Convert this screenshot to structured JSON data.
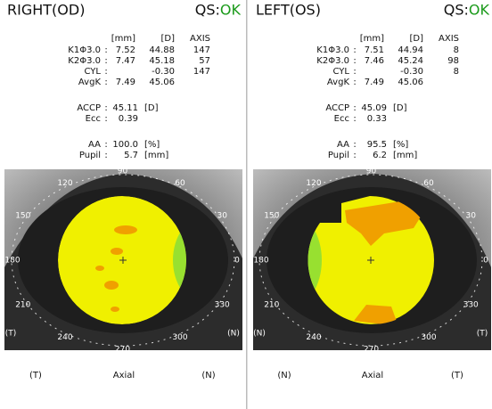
{
  "panels": [
    {
      "title": "RIGHT(OD)",
      "qs_label": "QS:",
      "qs_status": "OK",
      "columns": [
        "[mm]",
        "[D]",
        "AXIS"
      ],
      "rows": [
        {
          "label": "K1Φ3.0",
          "sep": ":",
          "mm": "7.52",
          "d": "44.88",
          "axis": "147"
        },
        {
          "label": "K2Φ3.0",
          "sep": ":",
          "mm": "7.47",
          "d": "45.18",
          "axis": "57"
        },
        {
          "label": "CYL",
          "sep": ":",
          "d": "-0.30",
          "axis": "147"
        },
        {
          "label": "AvgK",
          "sep": ":",
          "mm": "7.49",
          "d": "45.06"
        }
      ],
      "metrics": [
        {
          "label": "ACCP",
          "sep": ":",
          "value": "45.11",
          "unit": "[D]"
        },
        {
          "label": "Ecc",
          "sep": ":",
          "value": "0.39"
        },
        {
          "label": "AA",
          "sep": ":",
          "value": "100.0",
          "unit": "[%]"
        },
        {
          "label": "Pupil",
          "sep": ":",
          "value": "5.7",
          "unit": "[mm]"
        }
      ],
      "angles": [
        "90",
        "60",
        "30",
        "0",
        "330",
        "300",
        "270",
        "240",
        "210",
        "180",
        "150",
        "120"
      ],
      "corner_left": "(T)",
      "corner_right": "(N)",
      "footer": {
        "left": "(T)",
        "center": "Axial",
        "right": "(N)"
      }
    },
    {
      "title": "LEFT(OS)",
      "qs_label": "QS:",
      "qs_status": "OK",
      "columns": [
        "[mm]",
        "[D]",
        "AXIS"
      ],
      "rows": [
        {
          "label": "K1Φ3.0",
          "sep": ":",
          "mm": "7.51",
          "d": "44.94",
          "axis": "8"
        },
        {
          "label": "K2Φ3.0",
          "sep": ":",
          "mm": "7.46",
          "d": "45.24",
          "axis": "98"
        },
        {
          "label": "CYL",
          "sep": ":",
          "d": "-0.30",
          "axis": "8"
        },
        {
          "label": "AvgK",
          "sep": ":",
          "mm": "7.49",
          "d": "45.06"
        }
      ],
      "metrics": [
        {
          "label": "ACCP",
          "sep": ":",
          "value": "45.09",
          "unit": "[D]"
        },
        {
          "label": "Ecc",
          "sep": ":",
          "value": "0.33"
        },
        {
          "label": "AA",
          "sep": ":",
          "value": "95.5",
          "unit": "[%]"
        },
        {
          "label": "Pupil",
          "sep": ":",
          "value": "6.2",
          "unit": "[mm]"
        }
      ],
      "angles": [
        "90",
        "60",
        "30",
        "0",
        "330",
        "300",
        "270",
        "240",
        "210",
        "180",
        "150",
        "120"
      ],
      "corner_left": "(N)",
      "corner_right": "(T)",
      "footer": {
        "left": "(N)",
        "center": "Axial",
        "right": "(T)"
      }
    }
  ]
}
